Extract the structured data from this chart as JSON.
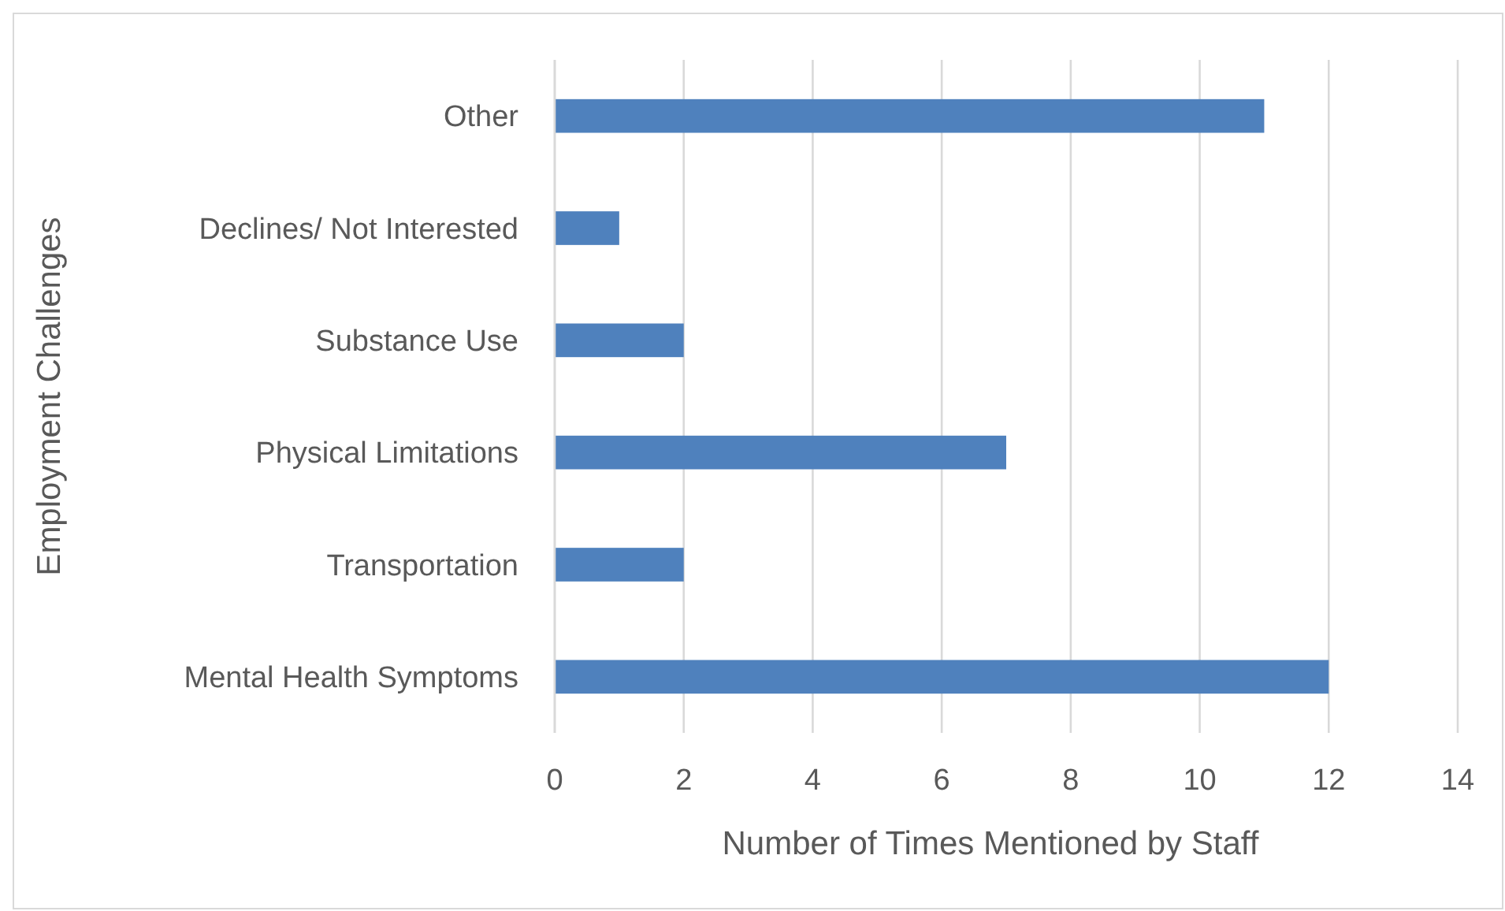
{
  "chart_data": {
    "type": "bar",
    "orientation": "horizontal",
    "xlabel": "Number of Times Mentioned by Staff",
    "ylabel": "Employment Challenges",
    "categories": [
      "Other",
      "Declines/ Not Interested",
      "Substance Use",
      "Physical Limitations",
      "Transportation",
      "Mental Health Symptoms"
    ],
    "values": [
      11,
      1,
      2,
      7,
      2,
      12
    ],
    "color": "#4f81bd",
    "xlim": [
      0,
      14
    ],
    "xticks": [
      0,
      2,
      4,
      6,
      8,
      10,
      12,
      14
    ],
    "grid": "x"
  }
}
